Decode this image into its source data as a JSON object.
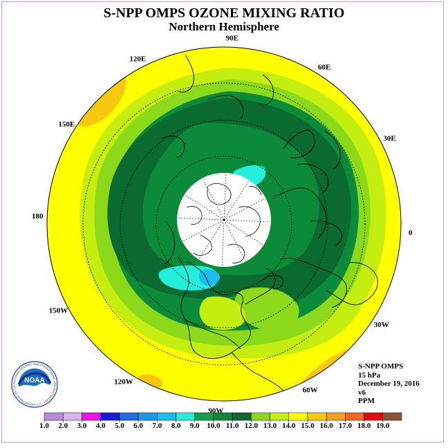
{
  "title": "S-NPP OMPS OZONE MIXING RATIO",
  "subtitle": "Northern Hemisphere",
  "longitude_labels": [
    {
      "text": "90E",
      "lon": 90
    },
    {
      "text": "60E",
      "lon": 60
    },
    {
      "text": "30E",
      "lon": 30
    },
    {
      "text": "0",
      "lon": 0
    },
    {
      "text": "30W",
      "lon": -30
    },
    {
      "text": "60W",
      "lon": -60
    },
    {
      "text": "90W",
      "lon": -90
    },
    {
      "text": "120W",
      "lon": -120
    },
    {
      "text": "150W",
      "lon": -150
    },
    {
      "text": "180",
      "lon": 180
    },
    {
      "text": "150E",
      "lon": 150
    },
    {
      "text": "120E",
      "lon": 120
    }
  ],
  "info": {
    "instrument": "S-NPP OMPS",
    "level": "15 hPa",
    "date": "December 19, 2016",
    "version": "v6",
    "units": "PPM"
  },
  "logo": {
    "text": "NOAA",
    "ring_text": "NATIONAL OCEANIC AND ATMOSPHERIC ADMINISTRATION · U.S. DEPARTMENT OF COMMERCE"
  },
  "colorbar": {
    "ticks": [
      "1.0",
      "2.0",
      "3.0",
      "4.0",
      "5.0",
      "6.0",
      "7.0",
      "8.0",
      "9.0",
      "10.0",
      "11.0",
      "12.0",
      "13.0",
      "14.0",
      "15.0",
      "16.0",
      "17.0",
      "18.0",
      "19.0"
    ],
    "colors": [
      "#b98be0",
      "#d7b4ee",
      "#ee11ee",
      "#1a1adb",
      "#1e6fe6",
      "#1b97ee",
      "#19bdf0",
      "#22f0dc",
      "#10a04c",
      "#0b8a3a",
      "#0a6a30",
      "#8cd81a",
      "#c4ee10",
      "#ffff00",
      "#f8c80e",
      "#f4a018",
      "#f06818",
      "#e80808",
      "#8c5636"
    ]
  },
  "ozone_colors": {
    "yellow": "#ffff00",
    "yellow_green": "#c4ee10",
    "light_green": "#8cd81a",
    "green": "#0b8a3a",
    "dark_green": "#0a6a30",
    "teal": "#22f0dc",
    "sky": "#19bdf0",
    "orange": "#f8c80e"
  }
}
